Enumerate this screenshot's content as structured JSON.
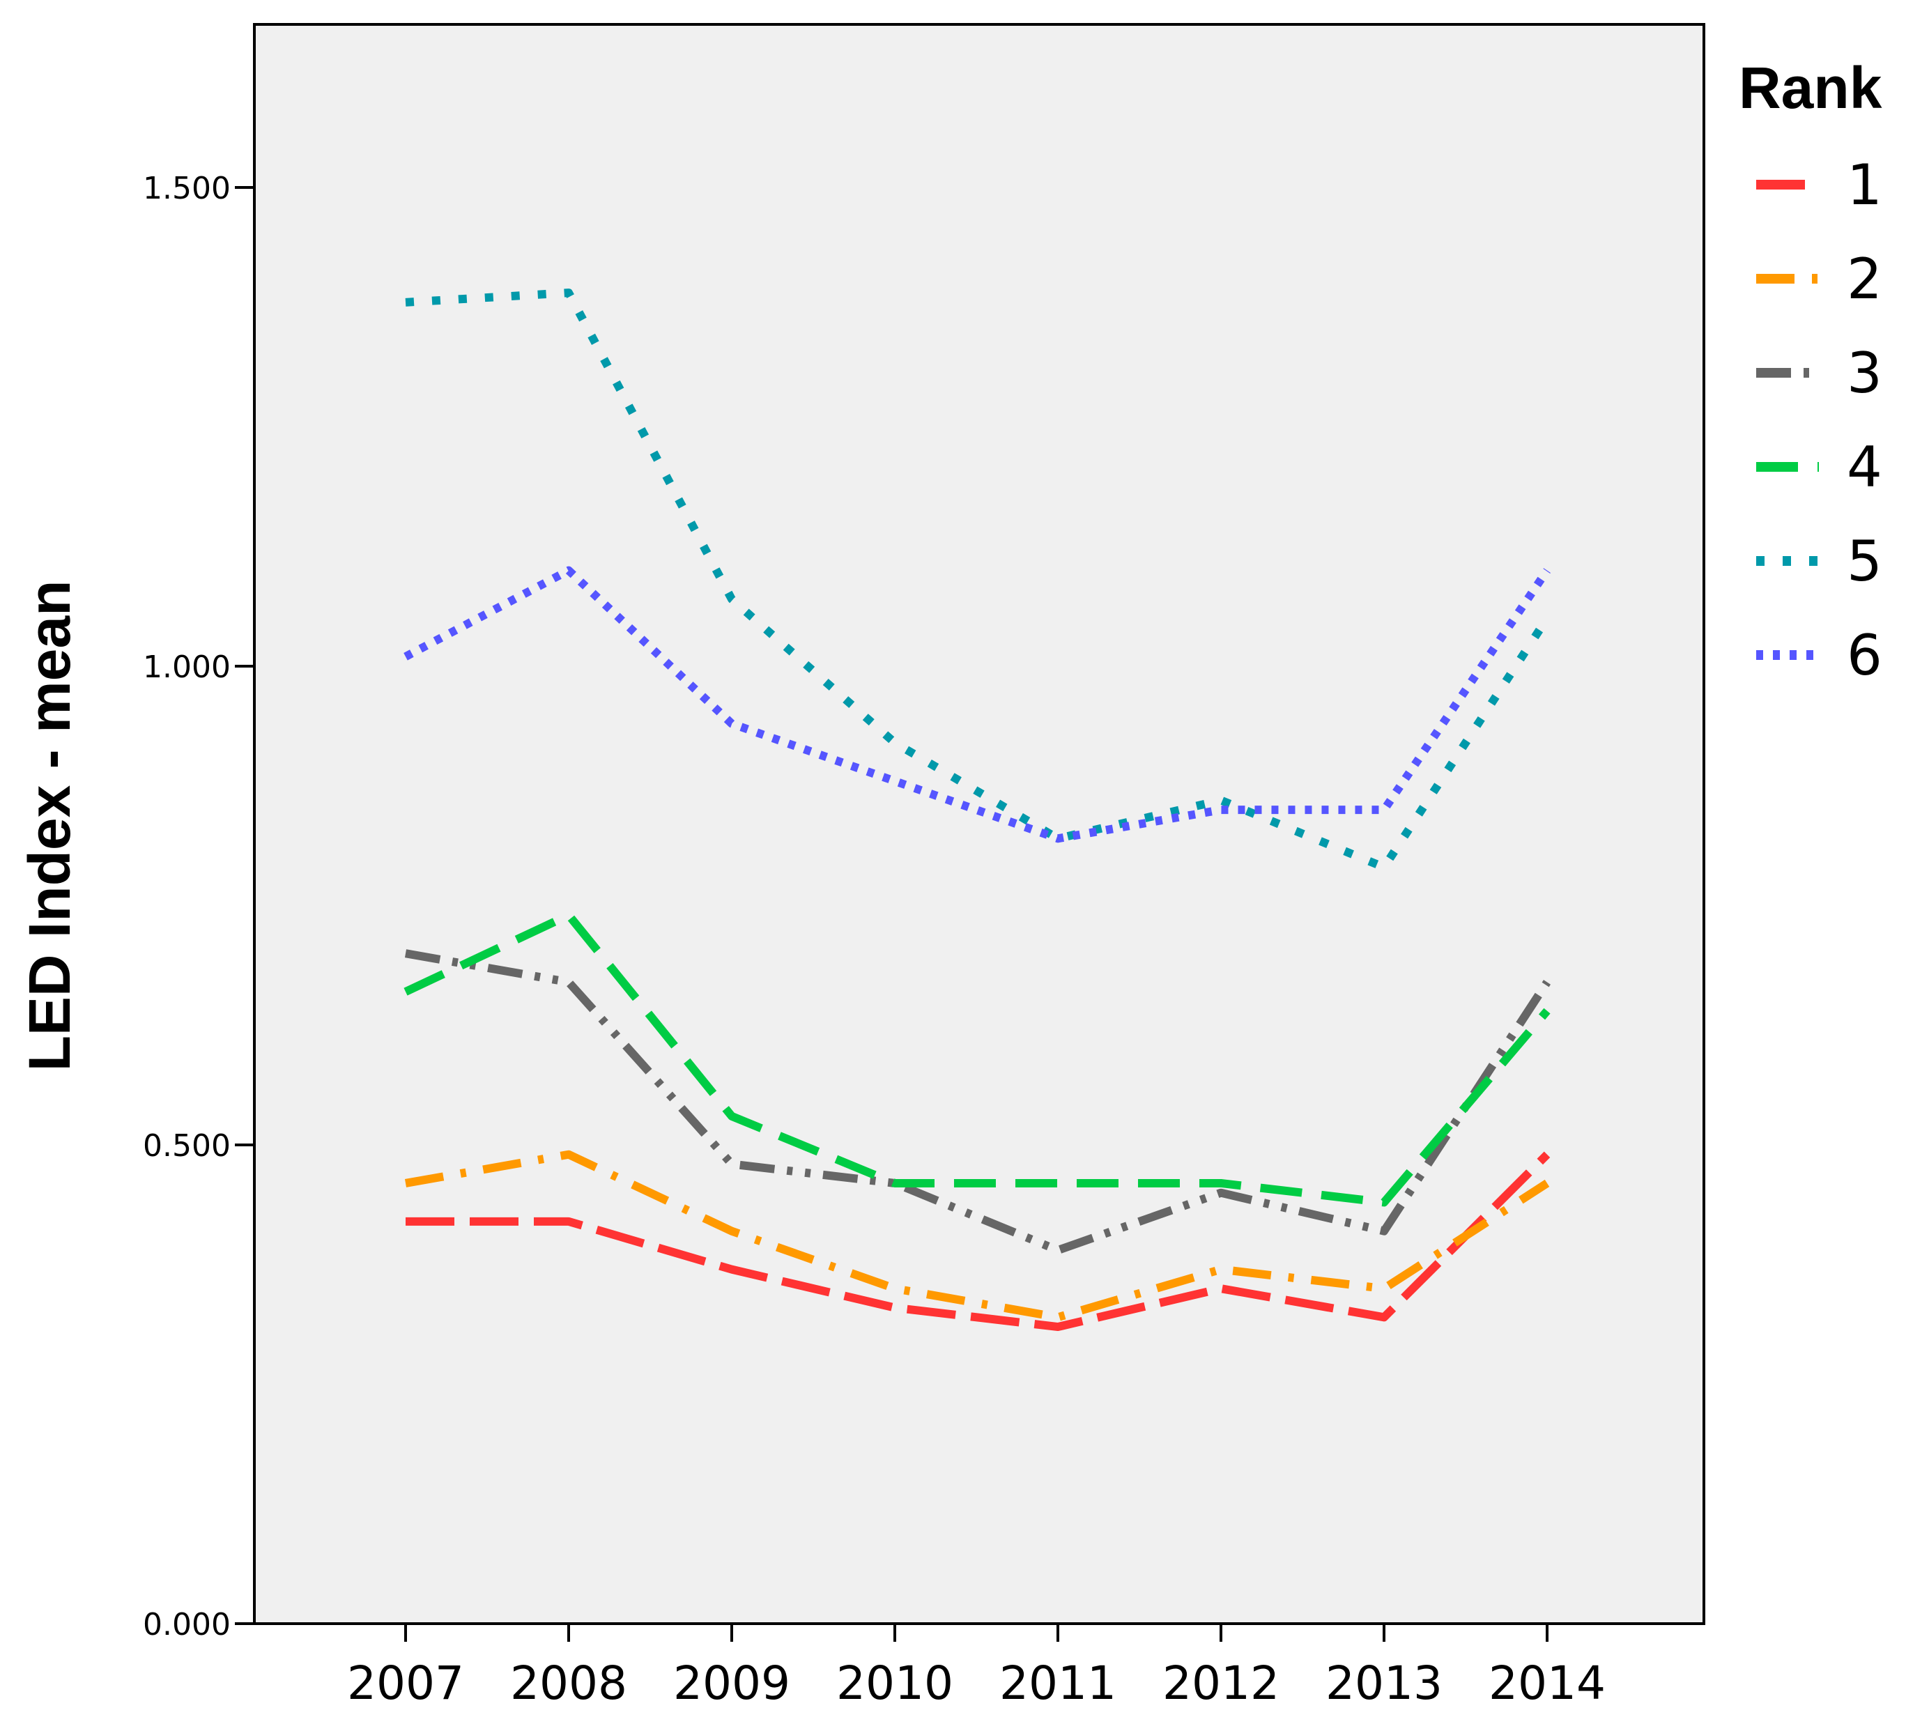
{
  "chart_data": {
    "type": "line",
    "title": "",
    "xlabel": "",
    "ylabel": "LED Index - mean",
    "ylim": [
      0,
      1.65
    ],
    "yticks": [
      0,
      0.5,
      1.0,
      1.5
    ],
    "ytick_labels": [
      "0.000",
      "0.500",
      "1.000",
      "1.500"
    ],
    "x": [
      "2007",
      "2008",
      "2009",
      "2010",
      "2011",
      "2012",
      "2013",
      "2014"
    ],
    "grid": false,
    "legend": {
      "title": "Rank",
      "placement": "right"
    },
    "series": [
      {
        "name": "1",
        "color": "#ff3333",
        "dash": "long-dash",
        "values": [
          0.42,
          0.42,
          0.37,
          0.33,
          0.31,
          0.35,
          0.32,
          0.49
        ]
      },
      {
        "name": "2",
        "color": "#ff9900",
        "dash": "dash-dot",
        "values": [
          0.46,
          0.49,
          0.41,
          0.35,
          0.32,
          0.37,
          0.35,
          0.46
        ]
      },
      {
        "name": "3",
        "color": "#666666",
        "dash": "dash-dot-dot",
        "values": [
          0.7,
          0.67,
          0.48,
          0.46,
          0.39,
          0.45,
          0.41,
          0.67
        ]
      },
      {
        "name": "4",
        "color": "#00cc44",
        "dash": "dash",
        "values": [
          0.66,
          0.74,
          0.53,
          0.46,
          0.46,
          0.46,
          0.44,
          0.64
        ]
      },
      {
        "name": "5",
        "color": "#0099aa",
        "dash": "dot",
        "values": [
          1.38,
          1.39,
          1.07,
          0.92,
          0.82,
          0.86,
          0.79,
          1.05
        ]
      },
      {
        "name": "6",
        "color": "#5555ff",
        "dash": "fine-dot",
        "values": [
          1.01,
          1.1,
          0.94,
          0.88,
          0.82,
          0.85,
          0.85,
          1.1
        ]
      }
    ]
  }
}
